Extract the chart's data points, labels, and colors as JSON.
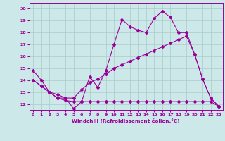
{
  "xlabel": "Windchill (Refroidissement éolien,°C)",
  "xlim": [
    -0.5,
    23.5
  ],
  "ylim": [
    21.5,
    30.5
  ],
  "yticks": [
    22,
    23,
    24,
    25,
    26,
    27,
    28,
    29,
    30
  ],
  "xticks": [
    0,
    1,
    2,
    3,
    4,
    5,
    6,
    7,
    8,
    9,
    10,
    11,
    12,
    13,
    14,
    15,
    16,
    17,
    18,
    19,
    20,
    21,
    22,
    23
  ],
  "background_color": "#cde8e8",
  "line_color": "#990099",
  "grid_color": "#aacccc",
  "line1_x": [
    0,
    1,
    2,
    3,
    4,
    5,
    6,
    7,
    8,
    9,
    10,
    11,
    12,
    13,
    14,
    15,
    16,
    17,
    18,
    19,
    20,
    21,
    22,
    23
  ],
  "line1_y": [
    24.8,
    24.0,
    23.0,
    22.5,
    22.5,
    21.6,
    22.2,
    24.3,
    23.4,
    24.8,
    27.0,
    29.1,
    28.5,
    28.2,
    28.0,
    29.2,
    29.8,
    29.3,
    28.0,
    28.0,
    26.2,
    24.1,
    22.5,
    21.8
  ],
  "line2_x": [
    0,
    1,
    2,
    3,
    4,
    5,
    6,
    7,
    8,
    9,
    10,
    11,
    12,
    13,
    14,
    15,
    16,
    17,
    18,
    19,
    20,
    21,
    22,
    23
  ],
  "line2_y": [
    24.0,
    23.5,
    23.0,
    22.8,
    22.5,
    22.5,
    23.2,
    23.8,
    24.1,
    24.5,
    25.0,
    25.3,
    25.6,
    25.9,
    26.2,
    26.5,
    26.8,
    27.1,
    27.4,
    27.7,
    26.2,
    24.1,
    22.5,
    21.8
  ],
  "line3_x": [
    0,
    1,
    2,
    3,
    4,
    5,
    6,
    7,
    8,
    9,
    10,
    11,
    12,
    13,
    14,
    15,
    16,
    17,
    18,
    19,
    20,
    21,
    22,
    23
  ],
  "line3_y": [
    24.0,
    23.5,
    23.0,
    22.5,
    22.3,
    22.2,
    22.2,
    22.2,
    22.2,
    22.2,
    22.2,
    22.2,
    22.2,
    22.2,
    22.2,
    22.2,
    22.2,
    22.2,
    22.2,
    22.2,
    22.2,
    22.2,
    22.2,
    21.8
  ]
}
